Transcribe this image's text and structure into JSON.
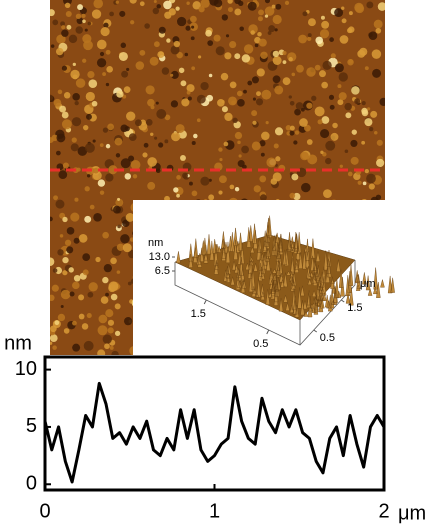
{
  "chart_data": [
    {
      "type": "line",
      "y_label": "nm",
      "x_label": "μm",
      "color": "#000000",
      "x": [
        0,
        0.04,
        0.08,
        0.12,
        0.16,
        0.2,
        0.24,
        0.28,
        0.32,
        0.36,
        0.4,
        0.44,
        0.48,
        0.52,
        0.56,
        0.6,
        0.64,
        0.68,
        0.72,
        0.76,
        0.8,
        0.84,
        0.88,
        0.92,
        0.96,
        1.0,
        1.04,
        1.08,
        1.12,
        1.16,
        1.2,
        1.24,
        1.28,
        1.32,
        1.36,
        1.4,
        1.44,
        1.48,
        1.52,
        1.56,
        1.6,
        1.64,
        1.68,
        1.72,
        1.76,
        1.8,
        1.84,
        1.88,
        1.92,
        1.96,
        2.0
      ],
      "values": [
        5.5,
        3,
        5,
        2,
        0.2,
        3,
        6,
        5,
        8.8,
        7,
        4,
        4.5,
        3.5,
        5,
        4,
        5.5,
        3,
        2.5,
        4,
        3,
        6.5,
        4,
        6.5,
        3,
        2,
        2.5,
        3.5,
        4,
        8.5,
        5.5,
        4,
        3.5,
        7.5,
        5.5,
        4.5,
        6.5,
        5,
        6.5,
        4.5,
        4,
        2,
        1,
        4,
        5,
        2.5,
        6,
        3.5,
        1.5,
        5,
        6,
        5
      ],
      "xlim": [
        0,
        2
      ],
      "ylim": [
        -0.5,
        11.1
      ],
      "xticks": [
        0,
        1,
        2
      ],
      "yticks": [
        0,
        5,
        10
      ]
    },
    {
      "type": "surface3d",
      "z_label": "nm",
      "xy_label": "μm",
      "zticks": [
        6.5,
        {
          "value": 13,
          "label": "13.0"
        }
      ],
      "xticks": [
        0.5,
        1.5
      ],
      "yticks": [
        0.5,
        1.5
      ]
    }
  ]
}
